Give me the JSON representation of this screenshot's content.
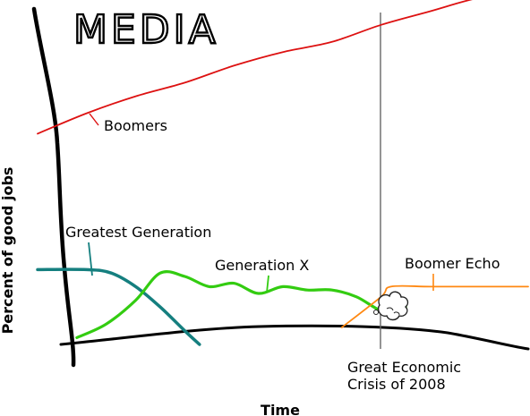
{
  "chart_data": {
    "type": "line",
    "title": "MEDIA",
    "xlabel": "Time",
    "ylabel": "Percent of good jobs",
    "grid": false,
    "legend": "none",
    "xlim": [
      0,
      100
    ],
    "ylim": [
      0,
      100
    ],
    "series": [
      {
        "name": "Boomers",
        "color": "#dd1111",
        "x": [
          0,
          10,
          20,
          30,
          40,
          50,
          60,
          70,
          80,
          90,
          100
        ],
        "y": [
          62,
          68,
          73,
          77,
          82,
          86,
          89,
          94,
          98,
          102,
          104
        ]
      },
      {
        "name": "Greatest Generation",
        "color": "#157f7f",
        "x": [
          0,
          10,
          15,
          20,
          25,
          30,
          33
        ],
        "y": [
          22,
          22,
          21,
          17,
          11,
          4,
          0
        ]
      },
      {
        "name": "Generation X",
        "color": "#33cc11",
        "x": [
          8,
          14,
          20,
          25,
          30,
          35,
          40,
          45,
          50,
          55,
          60,
          65,
          70,
          72,
          75
        ],
        "y": [
          2,
          6,
          13,
          21,
          20,
          17,
          18,
          15,
          17,
          16,
          16,
          14,
          10,
          12,
          11
        ]
      },
      {
        "name": "Boomer Echo",
        "color": "#ff8811",
        "x": [
          62,
          70,
          72,
          80,
          90,
          100
        ],
        "y": [
          5,
          14,
          17,
          17,
          17,
          17
        ]
      }
    ],
    "annotations": [
      {
        "text": "Great Economic Crisis of 2008",
        "x": 72,
        "lines": [
          "Great Economic",
          "Crisis of 2008"
        ]
      }
    ],
    "colors": {
      "axis": "#000000",
      "marker": "#666666"
    }
  }
}
